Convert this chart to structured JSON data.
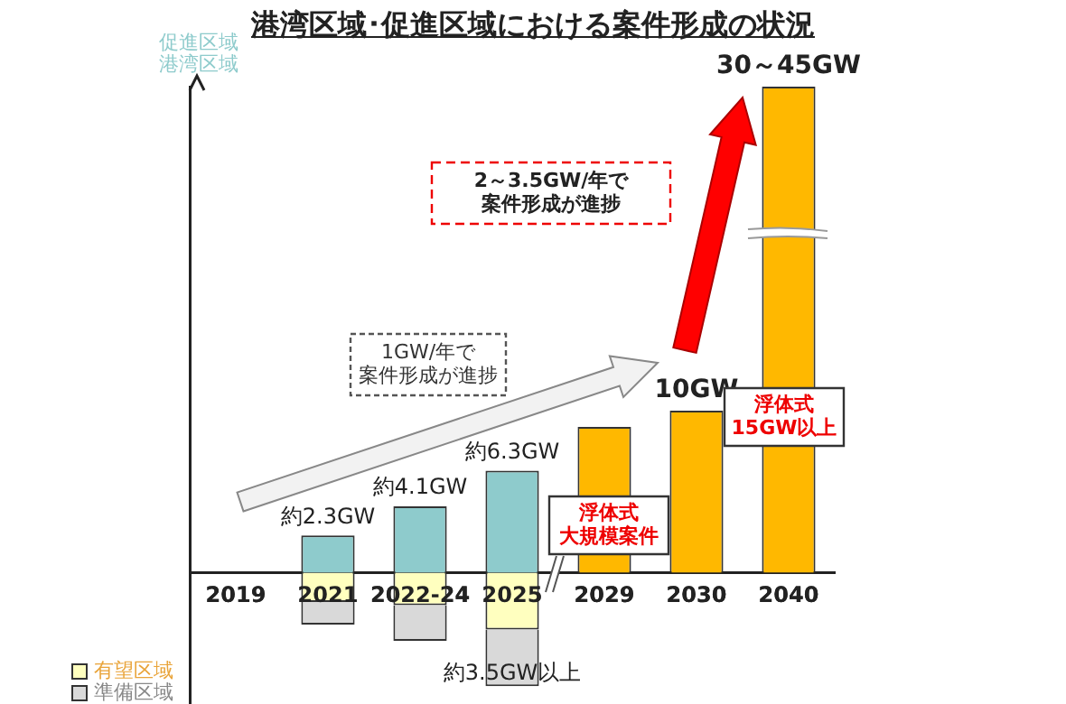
{
  "chart_data": {
    "type": "bar",
    "title": "港湾区域･促進区域における案件形成の状況",
    "stacked": true,
    "tick_labels": "x",
    "legend": "bottom left",
    "ylim": [
      -8.1,
      30
    ],
    "categories": [
      "2019",
      "2021",
      "2022-24",
      "2025",
      "2029",
      "2030",
      "2040"
    ],
    "series": [
      {
        "name": "促進区域港湾区域",
        "color": "#8ecbcc",
        "values": [
          null,
          2.3,
          4.1,
          6.3,
          null,
          null,
          null
        ],
        "value_labels": [
          null,
          "約2.3GW",
          "約4.1GW",
          "約6.3GW",
          null,
          null,
          null
        ]
      },
      {
        "color": "#ffb800",
        "values": [
          null,
          null,
          null,
          null,
          9,
          10,
          30
        ],
        "value_labels": [
          null,
          null,
          null,
          null,
          null,
          "10GW",
          "30～45GW"
        ]
      },
      {
        "name": "有望区域",
        "color": "#ffffbf",
        "values": [
          null,
          -1.8,
          -2,
          -3.5,
          null,
          null,
          null
        ]
      },
      {
        "name": "準備区域",
        "color": "#d9d9d9",
        "values": [
          null,
          -1.4,
          -2.2,
          -3.5,
          null,
          null,
          null
        ],
        "value_labels": [
          null,
          null,
          null,
          "約3.5GW以上",
          null,
          null,
          null
        ]
      }
    ],
    "annotations": [
      "1GW/年で案件形成が進捗",
      "2～3.5GW/年で案件形成が進捗",
      "浮体式大規模案件",
      "浮体式15GW以上"
    ]
  }
}
